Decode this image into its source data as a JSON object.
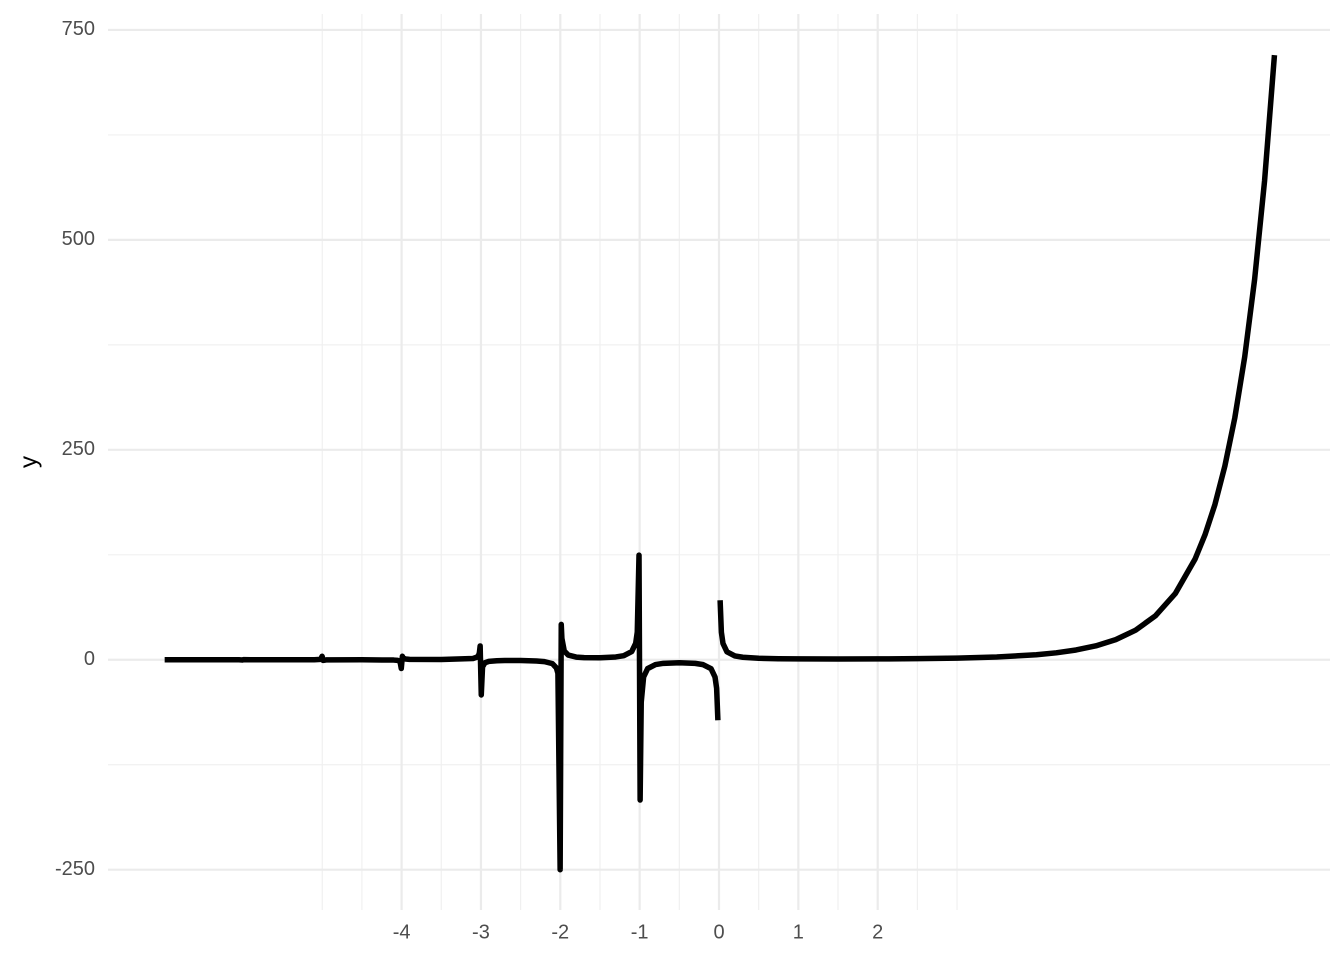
{
  "chart_data": {
    "type": "line",
    "y_label": "y",
    "x": [
      -6.986,
      -6.95,
      -6.5,
      -6.05,
      -6.006,
      -5.992,
      -5.9,
      -5.5,
      -5.1,
      -5.02,
      -5.002,
      -4.988,
      -4.95,
      -4.9,
      -4.5,
      -4.1,
      -4.05,
      -4.02,
      -4.004,
      -3.99,
      -3.98,
      -3.95,
      -3.9,
      -3.5,
      -3.1,
      -3.05,
      -3.03,
      -3.02,
      -3.01,
      -2.996,
      -2.98,
      -2.95,
      -2.9,
      -2.8,
      -2.7,
      -2.5,
      -2.3,
      -2.2,
      -2.1,
      -2.05,
      -2.03,
      -2.002,
      -1.988,
      -1.98,
      -1.95,
      -1.9,
      -1.8,
      -1.7,
      -1.5,
      -1.3,
      -1.2,
      -1.1,
      -1.05,
      -1.03,
      -1.008,
      -0.994,
      -0.98,
      -0.95,
      -0.9,
      -0.8,
      -0.7,
      -0.5,
      -0.3,
      -0.2,
      -0.1,
      -0.05,
      -0.03,
      -0.014,
      0,
      0.014,
      0.03,
      0.05,
      0.1,
      0.2,
      0.3,
      0.5,
      0.75,
      1,
      1.5,
      2,
      2.5,
      3,
      3.5,
      4,
      4.25,
      4.5,
      4.75,
      5,
      5.25,
      5.5,
      5.75,
      6,
      6.125,
      6.25,
      6.375,
      6.5,
      6.625,
      6.75,
      6.875,
      7
    ],
    "series": [
      {
        "color": "#000000",
        "values": [
          -0.0146,
          -0.0044,
          -0.00168,
          -0.025,
          -0.229,
          0.176,
          0.0165,
          0.0109,
          0.069,
          0.4,
          4.15,
          -0.71,
          -0.18,
          -0.0976,
          -0.06,
          -0.364,
          -0.77,
          -2.02,
          -10.35,
          4.23,
          2.15,
          0.896,
          0.492,
          0.27,
          1.492,
          3.12,
          5.35,
          8.12,
          16.46,
          -41.9,
          -8.54,
          -3.54,
          -1.918,
          -1.139,
          -0.931,
          -0.945,
          -1.447,
          -2.205,
          -4.626,
          -9.58,
          -16.2,
          -250,
          42.1,
          25.5,
          10.46,
          5.56,
          3.19,
          2.51,
          2.363,
          3.33,
          4.85,
          9.71,
          19.65,
          32.9,
          124.6,
          -167,
          -50.4,
          -20.4,
          -10.57,
          -5.74,
          -4.27,
          -3.545,
          -4.33,
          -5.82,
          -10.69,
          -20.6,
          -33.9,
          -72.0,
          null,
          70.85,
          32.8,
          19.47,
          9.51,
          4.59,
          2.99,
          1.77,
          1.23,
          1,
          0.886,
          1,
          1.33,
          2,
          3.32,
          6,
          8.29,
          11.63,
          16.59,
          24,
          35.21,
          52.34,
          78.78,
          120,
          148.9,
          184.9,
          230.6,
          287.9,
          360.6,
          453,
          570,
          720
        ]
      }
    ],
    "xlim": [
      -7.7,
      7.7
    ],
    "ylim": [
      -298,
      769
    ],
    "xticks": [
      -4,
      -3,
      -2,
      -1,
      0,
      1,
      2
    ],
    "yticks": [
      -250,
      0,
      250,
      500,
      750
    ],
    "grid": true
  }
}
